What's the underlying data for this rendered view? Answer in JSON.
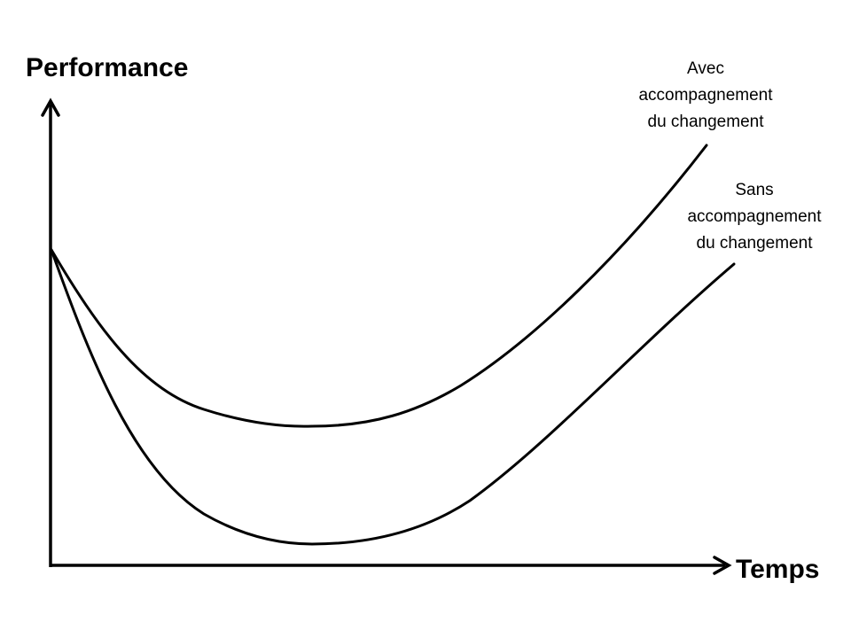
{
  "axes": {
    "y_label": "Performance",
    "x_label": "Temps"
  },
  "curves": [
    {
      "id": "with",
      "label_lines": [
        "Avec",
        "accompagnement",
        "du changement"
      ]
    },
    {
      "id": "without",
      "label_lines": [
        "Sans",
        "accompagnement",
        "du changement"
      ]
    }
  ],
  "colors": {
    "line": "#000000",
    "background": "#ffffff"
  }
}
